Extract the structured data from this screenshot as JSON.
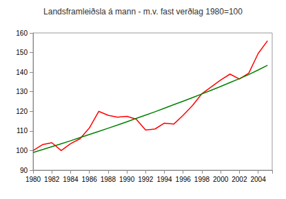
{
  "chart_data": {
    "type": "line",
    "title": "Landsframleiðsla á mann - m.v. fast verðlag 1980=100",
    "x": [
      1980,
      1981,
      1982,
      1983,
      1984,
      1985,
      1986,
      1987,
      1988,
      1989,
      1990,
      1991,
      1992,
      1993,
      1994,
      1995,
      1996,
      1997,
      1998,
      1999,
      2000,
      2001,
      2002,
      2003,
      2004,
      2005
    ],
    "series": [
      {
        "color": "#ff0000",
        "line_style": "solid",
        "values": [
          100,
          103,
          104,
          100,
          103.5,
          106,
          111.5,
          120,
          118,
          117,
          117.5,
          116,
          110.5,
          111,
          114,
          113.5,
          118,
          123,
          129,
          132.5,
          136,
          139,
          136.5,
          139.5,
          149.5,
          156
        ]
      },
      {
        "color": "#008000",
        "line_style": "solid",
        "values": [
          99,
          100.5,
          102,
          103.5,
          105,
          106.6,
          108.2,
          109.8,
          111.4,
          113,
          114.7,
          116.4,
          118.1,
          119.8,
          121.6,
          123.4,
          125.2,
          127,
          128.9,
          130.8,
          132.7,
          134.7,
          136.7,
          138.8,
          141.1,
          143.5
        ]
      }
    ],
    "xlim": [
      1980,
      2005.5
    ],
    "xticks": [
      1980,
      1982,
      1984,
      1986,
      1988,
      1990,
      1992,
      1994,
      1996,
      1998,
      2000,
      2002,
      2004
    ],
    "ylim": [
      90,
      160
    ],
    "yticks": [
      90,
      100,
      110,
      120,
      130,
      140,
      150,
      160
    ],
    "grid": false
  }
}
